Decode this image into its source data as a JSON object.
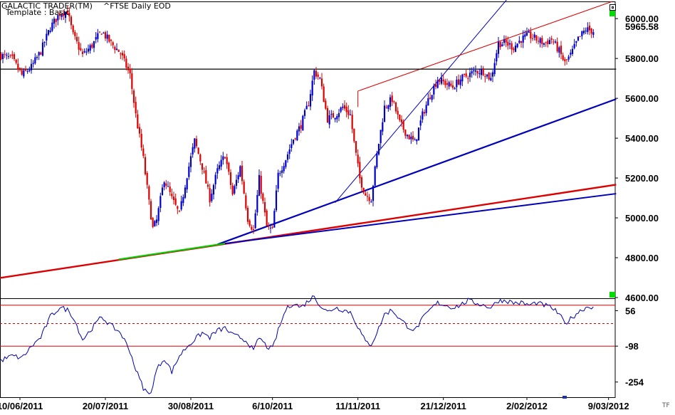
{
  "header": {
    "app_title": "GALACTIC TRADER(TM)",
    "template": "Template : Basic",
    "symbol": "^FTSE Daily EOD"
  },
  "price_axis": {
    "ticks": [
      "6000.00",
      "5800.00",
      "5600.00",
      "5400.00",
      "5200.00",
      "5000.00",
      "4800.00",
      "4600.00"
    ],
    "last_value": "5965.58"
  },
  "osc_axis": {
    "ticks": [
      "56",
      "-98",
      "-254"
    ]
  },
  "date_axis": {
    "labels": [
      "10/06/2011",
      "20/07/2011",
      "30/08/2011",
      "6/10/2011",
      "11/11/2011",
      "21/12/2011",
      "2/02/2012",
      "9/03/2012"
    ]
  },
  "corner_label": "TF",
  "colors": {
    "up": "#0000cc",
    "down": "#dd0000",
    "trend_red": "#dd0000",
    "trend_blue": "#0000bb",
    "osc_line": "#0000aa",
    "green_mark": "#00cc00"
  },
  "chart_data": {
    "type": "candlestick",
    "ylim": [
      4600,
      6090
    ],
    "anchors": [
      [
        0,
        5820
      ],
      [
        6,
        5800
      ],
      [
        11,
        5720
      ],
      [
        16,
        5760
      ],
      [
        21,
        5840
      ],
      [
        26,
        5960
      ],
      [
        31,
        6030
      ],
      [
        35,
        6040
      ],
      [
        38,
        5920
      ],
      [
        43,
        5820
      ],
      [
        48,
        5870
      ],
      [
        53,
        5940
      ],
      [
        58,
        5880
      ],
      [
        63,
        5830
      ],
      [
        68,
        5720
      ],
      [
        71,
        5520
      ],
      [
        75,
        5300
      ],
      [
        78,
        5080
      ],
      [
        80,
        4950
      ],
      [
        82,
        4990
      ],
      [
        86,
        5200
      ],
      [
        90,
        5100
      ],
      [
        94,
        5020
      ],
      [
        98,
        5220
      ],
      [
        102,
        5390
      ],
      [
        106,
        5260
      ],
      [
        110,
        5100
      ],
      [
        114,
        5240
      ],
      [
        118,
        5320
      ],
      [
        122,
        5120
      ],
      [
        126,
        5260
      ],
      [
        130,
        5000
      ],
      [
        133,
        4940
      ],
      [
        136,
        5200
      ],
      [
        140,
        4960
      ],
      [
        143,
        4940
      ],
      [
        146,
        5220
      ],
      [
        150,
        5300
      ],
      [
        154,
        5400
      ],
      [
        158,
        5470
      ],
      [
        162,
        5580
      ],
      [
        165,
        5740
      ],
      [
        168,
        5700
      ],
      [
        172,
        5500
      ],
      [
        176,
        5520
      ],
      [
        180,
        5560
      ],
      [
        184,
        5520
      ],
      [
        186,
        5380
      ],
      [
        189,
        5200
      ],
      [
        192,
        5120
      ],
      [
        195,
        5100
      ],
      [
        198,
        5320
      ],
      [
        202,
        5560
      ],
      [
        206,
        5600
      ],
      [
        210,
        5480
      ],
      [
        214,
        5420
      ],
      [
        218,
        5380
      ],
      [
        222,
        5520
      ],
      [
        226,
        5620
      ],
      [
        230,
        5700
      ],
      [
        234,
        5680
      ],
      [
        238,
        5660
      ],
      [
        242,
        5700
      ],
      [
        246,
        5720
      ],
      [
        250,
        5740
      ],
      [
        254,
        5740
      ],
      [
        258,
        5700
      ],
      [
        262,
        5880
      ],
      [
        266,
        5880
      ],
      [
        270,
        5860
      ],
      [
        274,
        5900
      ],
      [
        278,
        5920
      ],
      [
        282,
        5900
      ],
      [
        286,
        5880
      ],
      [
        290,
        5900
      ],
      [
        294,
        5840
      ],
      [
        297,
        5780
      ],
      [
        300,
        5820
      ],
      [
        304,
        5900
      ],
      [
        308,
        5950
      ],
      [
        312,
        5940
      ]
    ],
    "oscillator": {
      "ylim": [
        -320,
        110
      ],
      "levels": [
        80,
        0,
        -98
      ],
      "anchors": [
        [
          0,
          -160
        ],
        [
          6,
          -140
        ],
        [
          11,
          -150
        ],
        [
          16,
          -100
        ],
        [
          21,
          -60
        ],
        [
          26,
          30
        ],
        [
          31,
          70
        ],
        [
          35,
          60
        ],
        [
          38,
          30
        ],
        [
          43,
          -70
        ],
        [
          48,
          -20
        ],
        [
          53,
          30
        ],
        [
          58,
          -10
        ],
        [
          63,
          -40
        ],
        [
          68,
          -120
        ],
        [
          71,
          -200
        ],
        [
          75,
          -280
        ],
        [
          78,
          -310
        ],
        [
          80,
          -270
        ],
        [
          82,
          -200
        ],
        [
          86,
          -150
        ],
        [
          90,
          -210
        ],
        [
          94,
          -140
        ],
        [
          98,
          -100
        ],
        [
          102,
          -70
        ],
        [
          106,
          -40
        ],
        [
          110,
          -60
        ],
        [
          114,
          -30
        ],
        [
          118,
          -20
        ],
        [
          122,
          -50
        ],
        [
          126,
          -60
        ],
        [
          130,
          -80
        ],
        [
          133,
          -120
        ],
        [
          136,
          -60
        ],
        [
          140,
          -100
        ],
        [
          143,
          -110
        ],
        [
          146,
          -30
        ],
        [
          150,
          60
        ],
        [
          154,
          90
        ],
        [
          158,
          70
        ],
        [
          162,
          100
        ],
        [
          165,
          120
        ],
        [
          168,
          80
        ],
        [
          172,
          50
        ],
        [
          176,
          70
        ],
        [
          180,
          60
        ],
        [
          184,
          50
        ],
        [
          186,
          20
        ],
        [
          189,
          -30
        ],
        [
          192,
          -80
        ],
        [
          195,
          -90
        ],
        [
          198,
          -40
        ],
        [
          202,
          40
        ],
        [
          206,
          60
        ],
        [
          210,
          20
        ],
        [
          214,
          -10
        ],
        [
          218,
          -30
        ],
        [
          222,
          20
        ],
        [
          226,
          60
        ],
        [
          230,
          90
        ],
        [
          234,
          80
        ],
        [
          238,
          70
        ],
        [
          242,
          80
        ],
        [
          246,
          100
        ],
        [
          250,
          90
        ],
        [
          254,
          80
        ],
        [
          258,
          70
        ],
        [
          262,
          100
        ],
        [
          266,
          100
        ],
        [
          270,
          90
        ],
        [
          274,
          90
        ],
        [
          278,
          80
        ],
        [
          282,
          90
        ],
        [
          286,
          80
        ],
        [
          290,
          70
        ],
        [
          294,
          40
        ],
        [
          297,
          0
        ],
        [
          300,
          20
        ],
        [
          304,
          50
        ],
        [
          308,
          70
        ],
        [
          312,
          75
        ]
      ]
    },
    "lines": [
      {
        "color": "trend_red",
        "width": 2.4,
        "from": [
          -2,
          4700
        ],
        "to": [
          324,
          5170
        ]
      },
      {
        "color": "trend_blue",
        "width": 2.0,
        "from": [
          114,
          4870
        ],
        "to": [
          324,
          5125
        ]
      },
      {
        "color": "trend_blue",
        "width": 2.2,
        "from": [
          114,
          4870
        ],
        "to": [
          324,
          5600
        ]
      },
      {
        "color": "trend_blue",
        "width": 1.0,
        "from": [
          176,
          5080
        ],
        "to": [
          286,
          6320
        ]
      },
      {
        "color": "trend_red",
        "width": 1.0,
        "from": [
          188,
          5640
        ],
        "to": [
          322,
          6090
        ]
      },
      {
        "color": "trend_red",
        "width": 1.0,
        "from": [
          188,
          5560
        ],
        "to": [
          188,
          5640
        ]
      },
      {
        "color": "black",
        "width": 1.2,
        "from": [
          -2,
          5750
        ],
        "to": [
          324,
          5750
        ]
      }
    ],
    "green_segment": {
      "from": [
        62,
        4795
      ],
      "to": [
        118,
        4875
      ]
    }
  }
}
